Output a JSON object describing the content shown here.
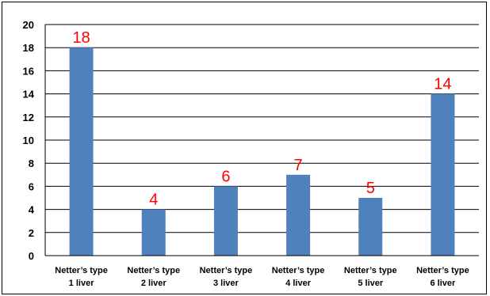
{
  "chart_data": {
    "type": "bar",
    "categories": [
      [
        "Netter’s type",
        "1 liver"
      ],
      [
        "Netter’s type",
        "2 liver"
      ],
      [
        "Netter’s type",
        "3 liver"
      ],
      [
        "Netter’s type",
        "4 liver"
      ],
      [
        "Netter’s type",
        "5 liver"
      ],
      [
        "Netter’s type",
        "6 liver"
      ]
    ],
    "values": [
      18,
      4,
      6,
      7,
      5,
      14
    ],
    "data_labels": [
      "18",
      "4",
      "6",
      "7",
      "5",
      "14"
    ],
    "ylim": [
      0,
      20
    ],
    "yticks": [
      0,
      2,
      4,
      6,
      8,
      10,
      12,
      14,
      16,
      18,
      20
    ],
    "grid": true,
    "legend": "none",
    "bar_color": "#4f81bd",
    "label_color": "#ff0000"
  }
}
